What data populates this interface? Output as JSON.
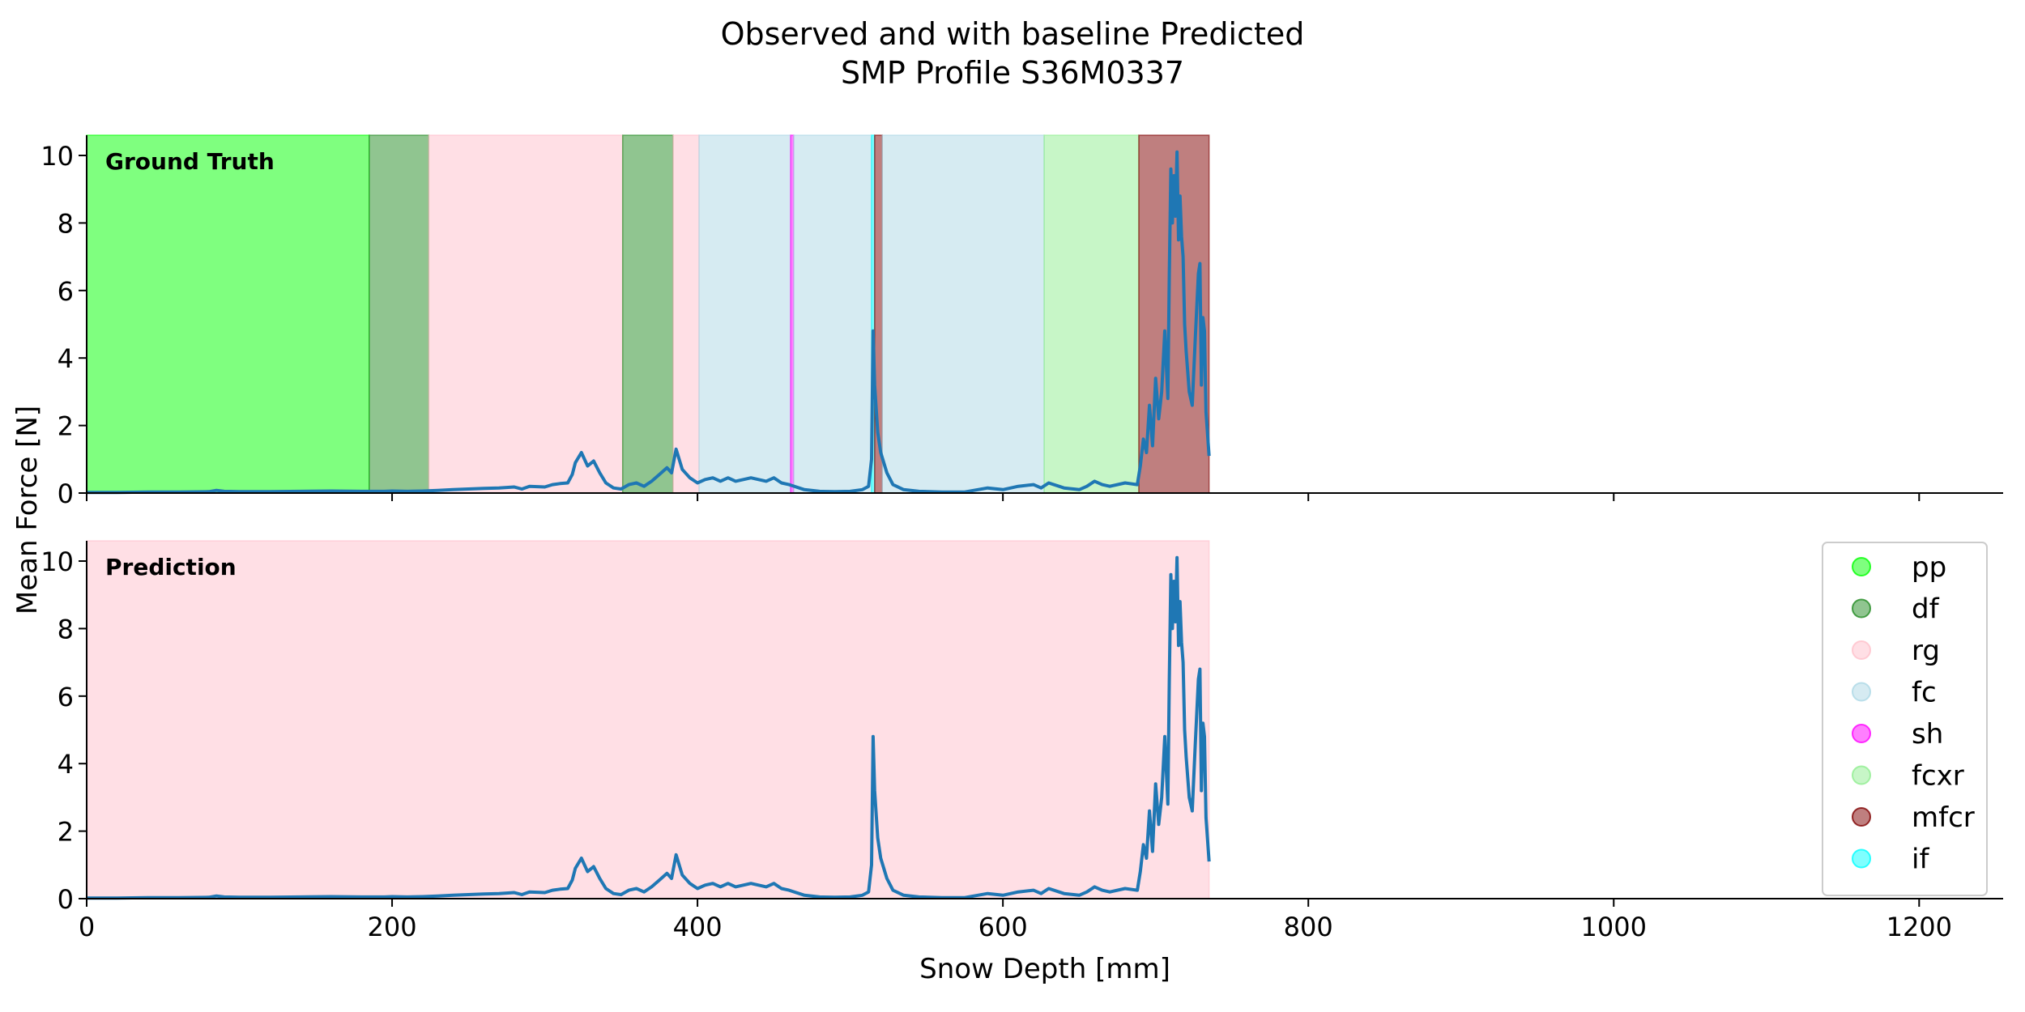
{
  "chart_data": {
    "type": "line",
    "title_lines": [
      "Observed and with baseline Predicted",
      "SMP Profile S36M0337"
    ],
    "xlabel": "Snow Depth [mm]",
    "ylabel": "Mean Force [N]",
    "xlim": [
      0,
      1255
    ],
    "ylim": [
      0,
      10.6
    ],
    "xticks": [
      0,
      200,
      400,
      600,
      800,
      1000,
      1200
    ],
    "yticks": [
      0,
      2,
      4,
      6,
      8,
      10
    ],
    "line_color": "#1f77b4",
    "legend": {
      "placement": "lower-right of prediction panel",
      "entries": [
        {
          "label": "pp",
          "color": "#00ff00",
          "alpha": 0.5
        },
        {
          "label": "df",
          "color": "#228b22",
          "alpha": 0.5
        },
        {
          "label": "rg",
          "color": "#ffc0cb",
          "alpha": 0.5
        },
        {
          "label": "fc",
          "color": "#add8e6",
          "alpha": 0.5
        },
        {
          "label": "sh",
          "color": "#ff00ff",
          "alpha": 0.5
        },
        {
          "label": "fcxr",
          "color": "#90ee90",
          "alpha": 0.5
        },
        {
          "label": "mfcr",
          "color": "#800000",
          "alpha": 0.5
        },
        {
          "label": "if",
          "color": "#00ffff",
          "alpha": 0.5
        }
      ]
    },
    "panels": [
      {
        "label": "Ground Truth",
        "segments": [
          {
            "from": 0,
            "to": 185,
            "class": "pp"
          },
          {
            "from": 185,
            "to": 224,
            "class": "df"
          },
          {
            "from": 224,
            "to": 351,
            "class": "rg"
          },
          {
            "from": 351,
            "to": 384,
            "class": "df"
          },
          {
            "from": 384,
            "to": 401,
            "class": "rg"
          },
          {
            "from": 401,
            "to": 461,
            "class": "fc"
          },
          {
            "from": 461,
            "to": 463,
            "class": "sh"
          },
          {
            "from": 463,
            "to": 514,
            "class": "fc"
          },
          {
            "from": 514,
            "to": 516,
            "class": "if"
          },
          {
            "from": 516,
            "to": 521,
            "class": "mfcr"
          },
          {
            "from": 521,
            "to": 627,
            "class": "fc"
          },
          {
            "from": 627,
            "to": 689,
            "class": "fcxr"
          },
          {
            "from": 689,
            "to": 735,
            "class": "mfcr"
          }
        ]
      },
      {
        "label": "Prediction",
        "segments": [
          {
            "from": 0,
            "to": 735,
            "class": "rg"
          }
        ]
      }
    ],
    "series": [
      {
        "x": [
          0,
          20,
          40,
          60,
          80,
          85,
          90,
          100,
          120,
          140,
          160,
          180,
          195,
          200,
          210,
          220,
          230,
          240,
          250,
          260,
          270,
          280,
          285,
          290,
          300,
          305,
          310,
          315,
          318,
          320,
          324,
          328,
          332,
          336,
          340,
          345,
          350,
          355,
          360,
          365,
          370,
          375,
          380,
          383,
          386,
          390,
          395,
          400,
          405,
          410,
          415,
          420,
          425,
          430,
          435,
          440,
          445,
          450,
          455,
          460,
          470,
          480,
          490,
          500,
          508,
          512,
          514,
          515,
          516,
          518,
          520,
          524,
          528,
          535,
          545,
          560,
          575,
          590,
          600,
          610,
          620,
          625,
          630,
          640,
          650,
          655,
          660,
          665,
          670,
          680,
          688,
          690,
          692,
          694,
          696,
          698,
          700,
          702,
          704,
          706,
          708,
          709,
          710,
          711,
          712,
          713,
          714,
          715,
          716,
          717,
          718,
          719,
          720,
          721,
          722,
          724,
          726,
          728,
          729,
          730,
          731,
          732,
          733,
          735
        ],
        "y": [
          0.02,
          0.02,
          0.03,
          0.03,
          0.04,
          0.08,
          0.05,
          0.04,
          0.04,
          0.05,
          0.06,
          0.05,
          0.05,
          0.06,
          0.05,
          0.06,
          0.08,
          0.1,
          0.12,
          0.14,
          0.15,
          0.18,
          0.12,
          0.2,
          0.18,
          0.25,
          0.28,
          0.3,
          0.55,
          0.9,
          1.2,
          0.8,
          0.95,
          0.6,
          0.3,
          0.15,
          0.12,
          0.25,
          0.3,
          0.2,
          0.35,
          0.55,
          0.75,
          0.6,
          1.3,
          0.7,
          0.45,
          0.3,
          0.4,
          0.45,
          0.35,
          0.45,
          0.35,
          0.4,
          0.45,
          0.4,
          0.35,
          0.45,
          0.3,
          0.25,
          0.1,
          0.05,
          0.04,
          0.05,
          0.1,
          0.2,
          1.0,
          4.8,
          3.2,
          1.8,
          1.2,
          0.6,
          0.25,
          0.1,
          0.05,
          0.03,
          0.03,
          0.15,
          0.1,
          0.2,
          0.25,
          0.15,
          0.3,
          0.15,
          0.1,
          0.2,
          0.35,
          0.25,
          0.2,
          0.3,
          0.25,
          0.8,
          1.6,
          1.2,
          2.6,
          1.4,
          3.4,
          2.2,
          3.0,
          4.8,
          2.8,
          6.5,
          9.6,
          8.0,
          9.4,
          8.2,
          10.1,
          7.5,
          8.8,
          7.6,
          7.0,
          5.0,
          4.2,
          3.6,
          3.0,
          2.6,
          4.6,
          6.5,
          6.8,
          3.2,
          5.2,
          4.8,
          2.4,
          1.1
        ]
      }
    ]
  }
}
